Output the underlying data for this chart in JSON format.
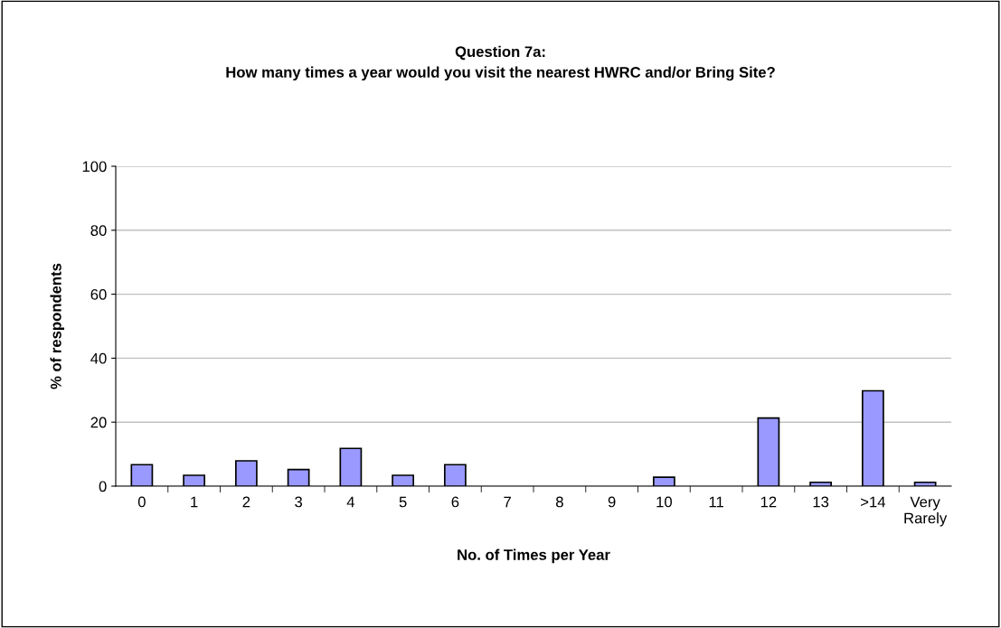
{
  "chart_data": {
    "type": "bar",
    "title": "Question 7a:\nHow many times a year would you visit the nearest HWRC and/or Bring Site?",
    "xlabel": "No. of Times per Year",
    "ylabel": "% of respondents",
    "categories": [
      "0",
      "1",
      "2",
      "3",
      "4",
      "5",
      "6",
      "7",
      "8",
      "9",
      "10",
      "11",
      "12",
      "13",
      ">14",
      "Very\nRarely"
    ],
    "values": [
      6.7,
      3.4,
      7.9,
      5.2,
      11.8,
      3.4,
      6.7,
      0,
      0,
      0,
      2.8,
      0,
      21.3,
      1.2,
      29.8,
      1.2
    ],
    "color": "#9999ff",
    "ylim": [
      0,
      100
    ],
    "yticks": [
      0,
      20,
      40,
      60,
      80,
      100
    ],
    "grid": "y"
  }
}
